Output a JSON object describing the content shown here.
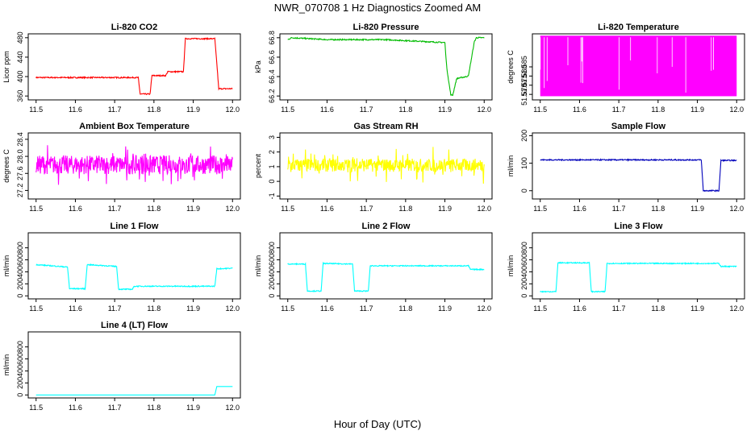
{
  "figure": {
    "title": "NWR_070708  1 Hz Diagnostics Zoomed AM",
    "xlabel": "Hour of Day (UTC)"
  },
  "chart_data": [
    {
      "type": "line",
      "title": "Li-820 CO2",
      "ylabel": "Licor ppm",
      "color": "#ff0000",
      "xlim": [
        11.48,
        12.02
      ],
      "ylim": [
        352,
        488
      ],
      "xticks": [
        "11.5",
        "11.6",
        "11.7",
        "11.8",
        "11.9",
        "12.0"
      ],
      "yticks": [
        "360",
        "400",
        "440",
        "480"
      ],
      "yticks_v": [
        360,
        400,
        440,
        480
      ],
      "noise": 1.2,
      "x": [
        11.5,
        11.76,
        11.765,
        11.79,
        11.795,
        11.83,
        11.835,
        11.875,
        11.88,
        11.955,
        11.965,
        12.0
      ],
      "y": [
        398,
        398,
        364,
        364,
        402,
        402,
        410,
        410,
        478,
        478,
        375,
        375
      ]
    },
    {
      "type": "line",
      "title": "Li-820 Pressure",
      "ylabel": "kPa",
      "color": "#00bb00",
      "xlim": [
        11.48,
        12.02
      ],
      "ylim": [
        66.16,
        66.84
      ],
      "xticks": [
        "11.5",
        "11.6",
        "11.7",
        "11.8",
        "11.9",
        "12.0"
      ],
      "yticks": [
        "66.2",
        "66.4",
        "66.6",
        "66.8"
      ],
      "yticks_v": [
        66.2,
        66.4,
        66.6,
        66.8
      ],
      "noise": 0.006,
      "x": [
        11.5,
        11.51,
        11.6,
        11.75,
        11.9,
        11.905,
        11.915,
        11.92,
        11.93,
        11.955,
        11.96,
        11.975,
        11.98,
        12.0
      ],
      "y": [
        66.78,
        66.8,
        66.78,
        66.78,
        66.75,
        66.48,
        66.21,
        66.21,
        66.38,
        66.4,
        66.41,
        66.76,
        66.8,
        66.8
      ]
    },
    {
      "type": "band",
      "title": "Li-820 Temperature",
      "ylabel": "degrees C",
      "color": "#ff00ff",
      "xlim": [
        11.48,
        12.02
      ],
      "ylim": [
        51.567,
        51.603
      ],
      "xticks": [
        "11.5",
        "11.6",
        "11.7",
        "11.8",
        "11.9",
        "12.0"
      ],
      "yticks": [
        "51.570",
        "51.575",
        "51.580",
        "51.585"
      ],
      "yticks_v": [
        51.57,
        51.575,
        51.58,
        51.585
      ],
      "band": [
        51.569,
        51.602
      ]
    },
    {
      "type": "line",
      "title": "Ambient Box Temperature",
      "ylabel": "degrees C",
      "color": "#ff00ff",
      "xlim": [
        11.48,
        12.02
      ],
      "ylim": [
        27.0,
        28.55
      ],
      "xticks": [
        "11.5",
        "11.6",
        "11.7",
        "11.8",
        "11.9",
        "12.0"
      ],
      "yticks": [
        "27.2",
        "27.6",
        "28.0",
        "28.4"
      ],
      "yticks_v": [
        27.2,
        27.6,
        28.0,
        28.4
      ],
      "noise": 0.22,
      "spikes": 0.32,
      "x": [
        11.5,
        12.0
      ],
      "y": [
        27.8,
        27.8
      ]
    },
    {
      "type": "line",
      "title": "Gas Stream RH",
      "ylabel": "percent",
      "color": "#ffff00",
      "xlim": [
        11.48,
        12.02
      ],
      "ylim": [
        -1.2,
        3.3
      ],
      "xticks": [
        "11.5",
        "11.6",
        "11.7",
        "11.8",
        "11.9",
        "12.0"
      ],
      "yticks": [
        "-1",
        "0",
        "1",
        "2",
        "3"
      ],
      "yticks_v": [
        -1,
        0,
        1,
        2,
        3
      ],
      "noise": 0.45,
      "spikes": 0.9,
      "x": [
        11.5,
        12.0
      ],
      "y": [
        1.1,
        1.1
      ]
    },
    {
      "type": "line",
      "title": "Sample Flow",
      "ylabel": "ml/min",
      "color": "#0000bb",
      "xlim": [
        11.48,
        12.02
      ],
      "ylim": [
        -30,
        210
      ],
      "xticks": [
        "11.5",
        "11.6",
        "11.7",
        "11.8",
        "11.9",
        "12.0"
      ],
      "yticks": [
        "0",
        "100",
        "200"
      ],
      "yticks_v": [
        0,
        100,
        200
      ],
      "noise": 2,
      "x": [
        11.5,
        11.91,
        11.915,
        11.955,
        11.96,
        12.0
      ],
      "y": [
        112,
        112,
        0,
        0,
        110,
        110
      ]
    },
    {
      "type": "line",
      "title": "Line 1 Flow",
      "ylabel": "ml/min",
      "color": "#00ffff",
      "xlim": [
        11.48,
        12.02
      ],
      "ylim": [
        -50,
        1050
      ],
      "xticks": [
        "11.5",
        "11.6",
        "11.7",
        "11.8",
        "11.9",
        "12.0"
      ],
      "yticks": [
        "0",
        "200",
        "400",
        "600",
        "800"
      ],
      "yticks_v": [
        0,
        200,
        400,
        600,
        800
      ],
      "noise": 8,
      "x": [
        11.5,
        11.58,
        11.585,
        11.625,
        11.63,
        11.705,
        11.71,
        11.745,
        11.75,
        11.955,
        11.96,
        12.0
      ],
      "y": [
        520,
        480,
        120,
        120,
        520,
        490,
        110,
        110,
        160,
        160,
        450,
        460
      ]
    },
    {
      "type": "line",
      "title": "Line 2 Flow",
      "ylabel": "ml/min",
      "color": "#00ffff",
      "xlim": [
        11.48,
        12.02
      ],
      "ylim": [
        -50,
        1050
      ],
      "xticks": [
        "11.5",
        "11.6",
        "11.7",
        "11.8",
        "11.9",
        "12.0"
      ],
      "yticks": [
        "0",
        "200",
        "400",
        "600",
        "800"
      ],
      "yticks_v": [
        0,
        200,
        400,
        600,
        800
      ],
      "noise": 8,
      "x": [
        11.5,
        11.545,
        11.55,
        11.585,
        11.59,
        11.665,
        11.67,
        11.705,
        11.71,
        11.96,
        11.965,
        12.0
      ],
      "y": [
        530,
        530,
        80,
        80,
        540,
        530,
        80,
        80,
        500,
        500,
        440,
        440
      ]
    },
    {
      "type": "line",
      "title": "Line 3 Flow",
      "ylabel": "ml/min",
      "color": "#00ffff",
      "xlim": [
        11.48,
        12.02
      ],
      "ylim": [
        -50,
        1050
      ],
      "xticks": [
        "11.5",
        "11.6",
        "11.7",
        "11.8",
        "11.9",
        "12.0"
      ],
      "yticks": [
        "0",
        "200",
        "400",
        "600",
        "800"
      ],
      "yticks_v": [
        0,
        200,
        400,
        600,
        800
      ],
      "noise": 8,
      "x": [
        11.5,
        11.54,
        11.545,
        11.625,
        11.63,
        11.665,
        11.67,
        11.955,
        11.96,
        12.0
      ],
      "y": [
        70,
        70,
        550,
        550,
        70,
        70,
        540,
        540,
        490,
        490
      ]
    },
    {
      "type": "line",
      "title": "Line 4 (LT) Flow",
      "ylabel": "ml/min",
      "color": "#00ffff",
      "xlim": [
        11.48,
        12.02
      ],
      "ylim": [
        -50,
        1050
      ],
      "xticks": [
        "11.5",
        "11.6",
        "11.7",
        "11.8",
        "11.9",
        "12.0"
      ],
      "yticks": [
        "0",
        "200",
        "400",
        "600",
        "800"
      ],
      "yticks_v": [
        0,
        200,
        400,
        600,
        800
      ],
      "noise": 0,
      "x": [
        11.5,
        11.955,
        11.96,
        12.0
      ],
      "y": [
        0,
        0,
        140,
        140
      ]
    }
  ]
}
